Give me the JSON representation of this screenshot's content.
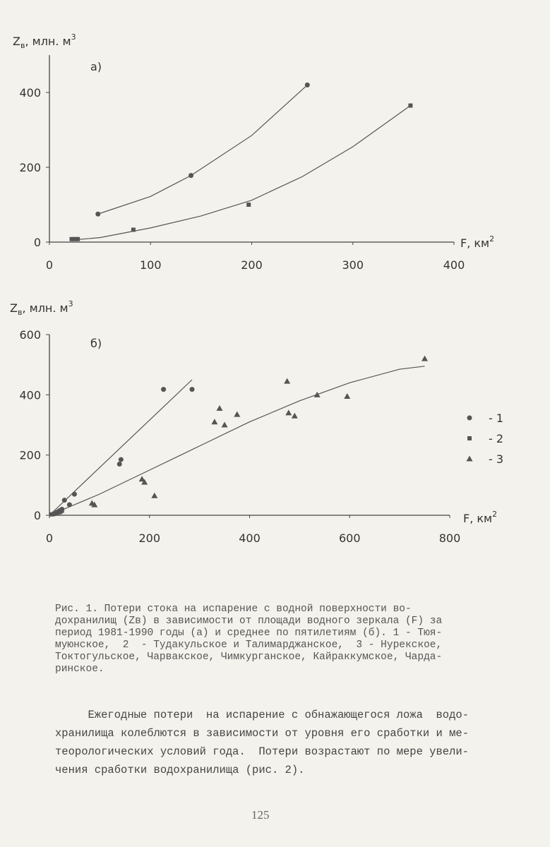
{
  "chart_data": [
    {
      "type": "scatter",
      "panel_label": "а)",
      "ylabel": {
        "main": "Z",
        "sub": "в",
        "rest": ", млн. м",
        "sup": "3"
      },
      "xlabel": {
        "main": "F, км",
        "sup": "2"
      },
      "xlim": [
        0,
        400
      ],
      "xticks": [
        0,
        100,
        200,
        300,
        400
      ],
      "ylim": [
        0,
        500
      ],
      "yticks": [
        0,
        200,
        400
      ],
      "series": [
        {
          "marker": "circle",
          "color": "#555",
          "x": [
            48,
            140,
            255
          ],
          "values": [
            75,
            178,
            420
          ]
        },
        {
          "marker": "square",
          "color": "#555",
          "x": [
            22,
            25,
            28,
            83,
            197,
            357
          ],
          "values": [
            8,
            8,
            8,
            33,
            100,
            365
          ]
        }
      ],
      "curves": [
        {
          "x": [
            48,
            100,
            140,
            200,
            255
          ],
          "values": [
            75,
            122,
            178,
            285,
            420
          ]
        },
        {
          "x": [
            20,
            50,
            100,
            150,
            200,
            250,
            300,
            357
          ],
          "values": [
            5,
            12,
            38,
            70,
            112,
            175,
            255,
            365
          ]
        }
      ]
    },
    {
      "type": "scatter",
      "panel_label": "б)",
      "ylabel": {
        "main": "Z",
        "sub": "в",
        "rest": ", млн. м",
        "sup": "3"
      },
      "xlabel": {
        "main": "F, км",
        "sup": "2"
      },
      "xlim": [
        0,
        800
      ],
      "xticks": [
        0,
        200,
        400,
        600,
        800
      ],
      "ylim": [
        0,
        600
      ],
      "yticks": [
        0,
        200,
        400,
        600
      ],
      "series": [
        {
          "name": "- 1",
          "marker": "circle",
          "color": "#555",
          "x": [
            10,
            15,
            20,
            25,
            30,
            40,
            50,
            140,
            143,
            228,
            285
          ],
          "values": [
            5,
            10,
            15,
            20,
            50,
            35,
            70,
            170,
            185,
            418,
            418
          ]
        },
        {
          "name": "- 2",
          "marker": "square",
          "color": "#555",
          "x": [
            5,
            10,
            15,
            20,
            22,
            25
          ],
          "values": [
            3,
            5,
            8,
            10,
            12,
            15
          ]
        },
        {
          "name": "- 3",
          "marker": "triangle",
          "color": "#555",
          "x": [
            85,
            90,
            185,
            190,
            210,
            330,
            340,
            350,
            375,
            475,
            478,
            490,
            535,
            595,
            750
          ],
          "values": [
            40,
            35,
            120,
            110,
            65,
            310,
            355,
            300,
            335,
            445,
            340,
            330,
            400,
            395,
            520
          ]
        }
      ],
      "curves": [
        {
          "x": [
            0,
            285
          ],
          "values": [
            0,
            450
          ]
        },
        {
          "x": [
            0,
            100,
            200,
            300,
            400,
            500,
            600,
            700,
            750
          ],
          "values": [
            0,
            70,
            150,
            230,
            310,
            380,
            440,
            485,
            495
          ]
        }
      ]
    }
  ],
  "caption": [
    "Рис. 1. Потери стока на испарение с водной поверхности во-",
    "дохранилищ (Zв) в зависимости от площади водного зеркала (F) за",
    "период 1981-1990 годы (а) и среднее по пятилетиям (б). 1 - Тюя-",
    "муюнское,  2  - Тудакульское и Талимарджанское,  3 - Нурекское,",
    "Токтогульское, Чарвакское, Чимкурганское, Кайраккумское, Чарда-",
    "ринское."
  ],
  "paragraph": [
    "     Ежегодные потери  на испарение с обнажающегося ложа  водо-",
    "хранилища колеблются в зависимости от уровня его сработки и ме-",
    "теорологических условий года.  Потери возрастают по мере увели-",
    "чения сработки водохранилища (рис. 2)."
  ],
  "page_number": "125"
}
